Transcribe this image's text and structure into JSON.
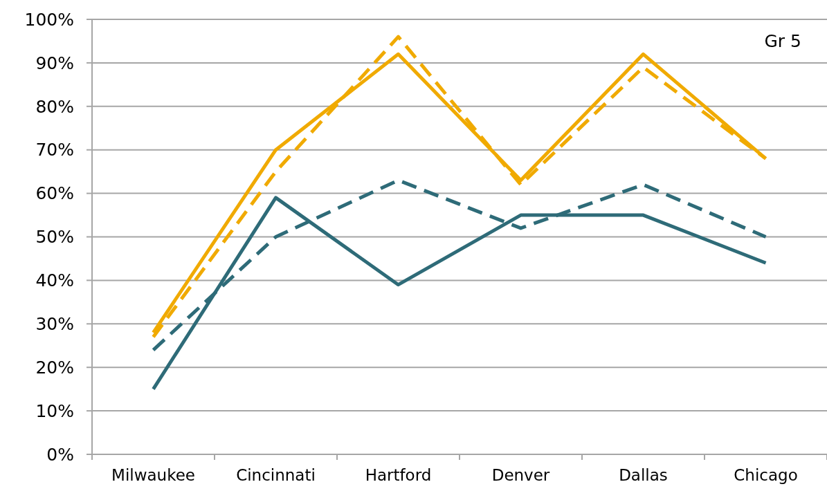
{
  "chart_data": {
    "type": "line",
    "categories": [
      "Milwaukee",
      "Cincinnati",
      "Hartford",
      "Denver",
      "Dallas",
      "Chicago"
    ],
    "series": [
      {
        "color": "#f0aa00",
        "line_style": "solid",
        "values": [
          28,
          70,
          92,
          63,
          92,
          68
        ]
      },
      {
        "color": "#f0aa00",
        "line_style": "dashed",
        "values": [
          27,
          65,
          96,
          62,
          89,
          68
        ]
      },
      {
        "color": "#2e6b78",
        "line_style": "solid",
        "values": [
          15,
          59,
          39,
          55,
          55,
          44
        ]
      },
      {
        "color": "#2e6b78",
        "line_style": "dashed",
        "values": [
          24,
          50,
          63,
          52,
          62,
          50
        ]
      }
    ],
    "ylim": [
      0,
      100
    ],
    "yticks": [
      {
        "value": 0,
        "label": "0%"
      },
      {
        "value": 10,
        "label": "10%"
      },
      {
        "value": 20,
        "label": "20%"
      },
      {
        "value": 30,
        "label": "30%"
      },
      {
        "value": 40,
        "label": "40%"
      },
      {
        "value": 50,
        "label": "50%"
      },
      {
        "value": 60,
        "label": "60%"
      },
      {
        "value": 70,
        "label": "70%"
      },
      {
        "value": 80,
        "label": "80%"
      },
      {
        "value": 90,
        "label": "90%"
      },
      {
        "value": 100,
        "label": "100%"
      }
    ],
    "grid": "y",
    "annotations": [
      "Gr 5"
    ]
  }
}
